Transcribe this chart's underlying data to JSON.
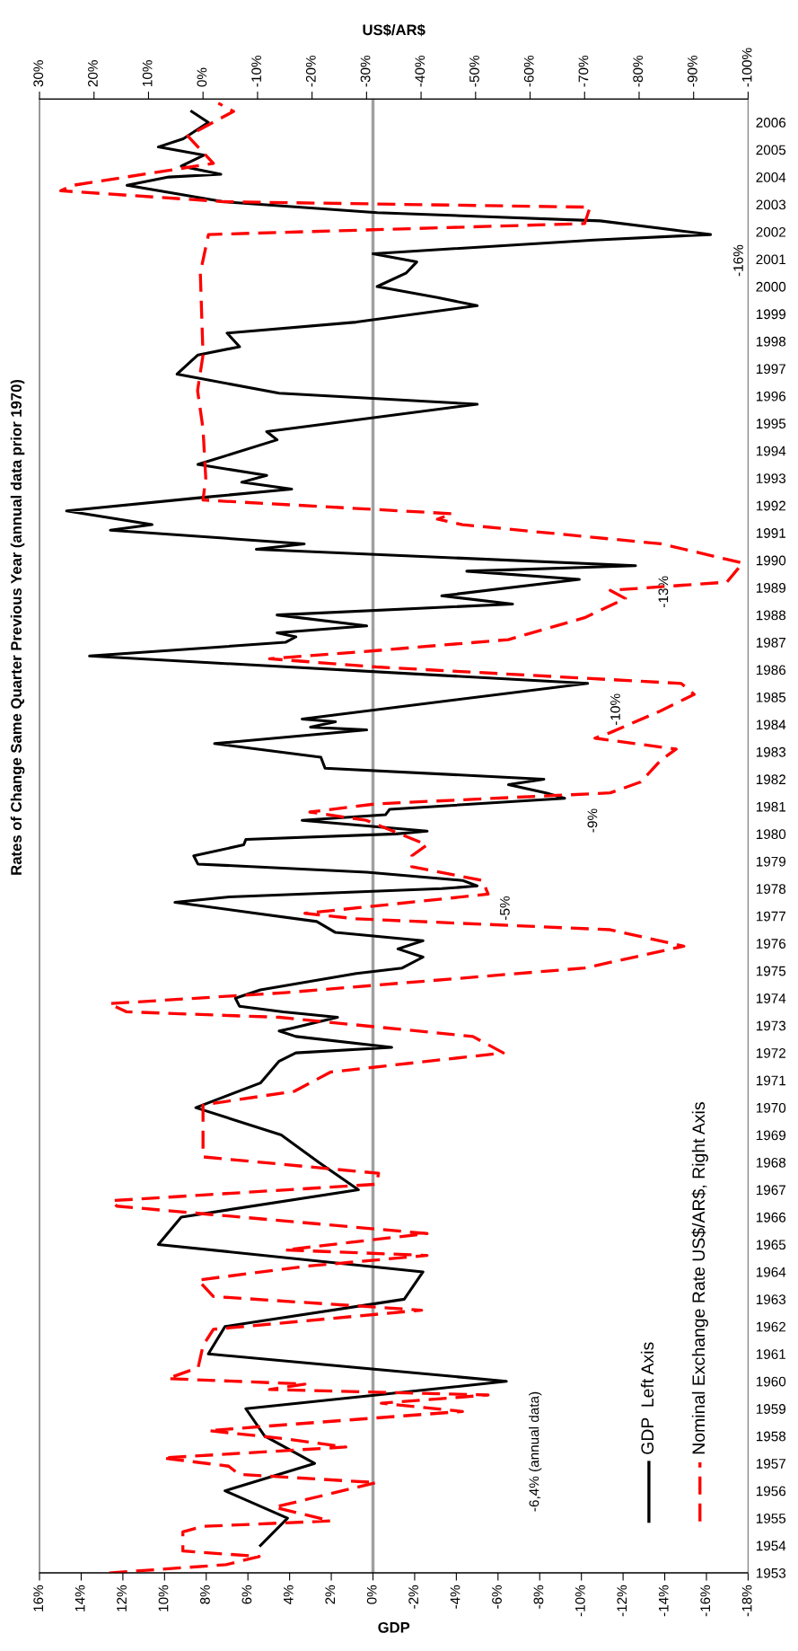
{
  "chart_data": {
    "type": "line",
    "subtitle": "Rates of Change Same Quarter Previous Year (annual data prior 1970)",
    "xlabel": "GDP",
    "x2label": "US$/AR$",
    "ylim": [
      1953,
      2006.85
    ],
    "yticks": [
      1953,
      1954,
      1955,
      1956,
      1957,
      1958,
      1959,
      1960,
      1961,
      1962,
      1963,
      1964,
      1965,
      1966,
      1967,
      1968,
      1969,
      1970,
      1971,
      1972,
      1973,
      1974,
      1975,
      1976,
      1977,
      1978,
      1979,
      1980,
      1981,
      1982,
      1983,
      1984,
      1985,
      1986,
      1987,
      1988,
      1989,
      1990,
      1991,
      1992,
      1993,
      1994,
      1995,
      1996,
      1997,
      1998,
      1999,
      2000,
      2001,
      2002,
      2003,
      2004,
      2005,
      2006
    ],
    "xlim": [
      16,
      -18
    ],
    "xticks": [
      {
        "value": 16,
        "label": "16%"
      },
      {
        "value": 14,
        "label": "14%"
      },
      {
        "value": 12,
        "label": "12%"
      },
      {
        "value": 10,
        "label": "10%"
      },
      {
        "value": 8,
        "label": "8%"
      },
      {
        "value": 6,
        "label": "6%"
      },
      {
        "value": 4,
        "label": "4%"
      },
      {
        "value": 2,
        "label": "2%"
      },
      {
        "value": 0,
        "label": "0%"
      },
      {
        "value": -2,
        "label": "-2%"
      },
      {
        "value": -4,
        "label": "-4%"
      },
      {
        "value": -6,
        "label": "-6%"
      },
      {
        "value": -8,
        "label": "-8%"
      },
      {
        "value": -10,
        "label": "-10%"
      },
      {
        "value": -12,
        "label": "-12%"
      },
      {
        "value": -14,
        "label": "-14%"
      },
      {
        "value": -16,
        "label": "-16%"
      },
      {
        "value": -18,
        "label": "-18%"
      }
    ],
    "x2lim": [
      30,
      -100
    ],
    "x2ticks": [
      {
        "value": 30,
        "label": "30%"
      },
      {
        "value": 20,
        "label": "20%"
      },
      {
        "value": 10,
        "label": "10%"
      },
      {
        "value": 0,
        "label": "0%"
      },
      {
        "value": -10,
        "label": "-10%"
      },
      {
        "value": -20,
        "label": "-20%"
      },
      {
        "value": -30,
        "label": "-30%"
      },
      {
        "value": -40,
        "label": "-40%"
      },
      {
        "value": -50,
        "label": "-50%"
      },
      {
        "value": -60,
        "label": "-60%"
      },
      {
        "value": -70,
        "label": "-70%"
      },
      {
        "value": -80,
        "label": "-80%"
      },
      {
        "value": -90,
        "label": "-90%"
      },
      {
        "value": -100,
        "label": "-100%"
      }
    ],
    "series": [
      {
        "name": "GDP  Left Axis",
        "color": "#000000",
        "line_style": "solid",
        "values": [
          1954,
          1955,
          1956,
          1957,
          1958,
          1959,
          1960,
          1961,
          1962,
          1963,
          1964,
          1965,
          1966,
          1967,
          1968,
          1969,
          1970,
          1970.9,
          1971.7,
          1972.0,
          1972.2,
          1972.6,
          1972.8,
          1972.9,
          1973.3,
          1973.5,
          1973.7,
          1974.0,
          1974.3,
          1974.9,
          1975.1,
          1975.5,
          1975.8,
          1976.1,
          1976.4,
          1976.8,
          1977.5,
          1977.7,
          1978.0,
          1978.1,
          1978.3,
          1978.6,
          1978.9,
          1979.2,
          1979.6,
          1979.8,
          1980.0,
          1980.1,
          1980.5,
          1980.7,
          1980.9,
          1981.3,
          1981.5,
          1981.8,
          1982.0,
          1982.4,
          1982.8,
          1983.3,
          1983.8,
          1983.9,
          1984.1,
          1984.2,
          1985.5,
          1986.5,
          1987.0,
          1987.2,
          1987.35,
          1987.6,
          1988.0,
          1988.4,
          1988.7,
          1989.3,
          1989.6,
          1989.8,
          1990.4,
          1990.6,
          1991.1,
          1991.3,
          1991.8,
          1992.3,
          1992.6,
          1992.85,
          1993.1,
          1993.5,
          1994.4,
          1994.7,
          1995.7,
          1996.1,
          1996.8,
          1997.5,
          1997.8,
          1998.3,
          1998.7,
          1999.3,
          1999.6,
          2000.0,
          2000.5,
          2000.9,
          2001.2,
          2001.7,
          2001.9,
          2002.4,
          2002.7,
          2003.1,
          2003.7,
          2004.0,
          2004.1,
          2004.4,
          2004.8,
          2005.1,
          2005.4,
          2006.0,
          2006.4
        ],
        "x": [
          5.4,
          4.1,
          7.1,
          2.8,
          5.2,
          6.1,
          -6.4,
          7.9,
          7.1,
          -1.5,
          -2.4,
          10.3,
          9.2,
          0.7,
          2.6,
          4.4,
          8.5,
          5.4,
          4.5,
          3.7,
          -0.9,
          3.7,
          4.5,
          3.9,
          1.7,
          4.3,
          6.4,
          6.6,
          5.4,
          0.8,
          -1.4,
          -2.4,
          -1.2,
          -2.4,
          1.8,
          2.7,
          9.5,
          6.9,
          -3.3,
          -5.0,
          -4.3,
          0.3,
          8.4,
          8.6,
          6.2,
          6.1,
          -1.1,
          -2.6,
          3.4,
          -0.6,
          -0.8,
          -9.2,
          -8.3,
          -6.5,
          -8.2,
          2.3,
          2.5,
          7.6,
          0.3,
          3.0,
          1.8,
          3.4,
          -10.3,
          13.6,
          4.2,
          3.7,
          4.6,
          0.3,
          4.6,
          -6.7,
          -3.3,
          -9.9,
          -4.5,
          -12.6,
          5.6,
          3.3,
          12.6,
          10.6,
          14.7,
          8.1,
          3.9,
          6.3,
          5.1,
          8.4,
          4.6,
          5.1,
          -5.0,
          4.5,
          9.4,
          8.4,
          6.4,
          7.0,
          0.8,
          -5.0,
          -3.1,
          -0.2,
          -1.6,
          -2.1,
          0.0,
          -10.6,
          -16.2,
          -10.9,
          -0.2,
          7.2,
          11.8,
          9.8,
          7.3,
          9.2,
          8.1,
          10.3,
          9.1,
          7.9,
          8.7
        ]
      },
      {
        "name": "Nominal Exchange Rate US$/AR$, Right Axis",
        "color": "#ff0000",
        "line_style": "dashed",
        "axis": "x2",
        "values": [
          1953.0,
          1953.3,
          1953.6,
          1953.8,
          1954.5,
          1954.7,
          1954.9,
          1955.4,
          1956.3,
          1956.6,
          1956.9,
          1957.2,
          1957.6,
          1957.9,
          1958.2,
          1958.9,
          1959.2,
          1959.5,
          1959.7,
          1959.9,
          1960.1,
          1960.5,
          1961.3,
          1961.9,
          1962.6,
          1963.1,
          1963.7,
          1964.2,
          1964.6,
          1964.8,
          1965.4,
          1966.4,
          1966.6,
          1967.2,
          1967.6,
          1968.2,
          1969.1,
          1970.1,
          1970.6,
          1971.3,
          1972.0,
          1972.6,
          1973.3,
          1973.5,
          1973.8,
          1974.2,
          1975.1,
          1975.9,
          1976.5,
          1976.9,
          1977.1,
          1977.8,
          1978.3,
          1978.8,
          1979.2,
          1979.6,
          1980.5,
          1980.8,
          1981.1,
          1981.5,
          1981.9,
          1982.7,
          1983.1,
          1983.5,
          1983.7,
          1984.5,
          1985.1,
          1985.5,
          1986.1,
          1986.4,
          1986.7,
          1987.1,
          1987.9,
          1988.6,
          1988.9,
          1989.2,
          1989.9,
          1990.6,
          1991.3,
          1991.5,
          1991.7,
          1992.2,
          1993.0,
          1994.8,
          1996.2,
          1997.5,
          2000.5,
          2001.9,
          2002.3,
          2002.9,
          2003.1,
          2003.5,
          2003.7,
          2004.5,
          2005.5,
          2006.4,
          2006.7
        ],
        "x": [
          17.2,
          -4.2,
          -10.3,
          3.7,
          3.7,
          0.0,
          -23.4,
          -13.1,
          -31.8,
          -6.6,
          -4.7,
          7.4,
          -26.2,
          -15.0,
          -1.0,
          -47.6,
          -32.7,
          -52.3,
          -12.2,
          -18.7,
          6.5,
          0.9,
          0.0,
          -1.9,
          -40.1,
          -1.9,
          0.9,
          -18.7,
          -41.1,
          -15.0,
          -41.1,
          15.8,
          16.8,
          -31.8,
          -32.2,
          0.0,
          0.0,
          0.0,
          -16.8,
          -23.4,
          -55.1,
          -49.5,
          -14.0,
          14.0,
          17.2,
          -15.0,
          -70.0,
          -88.2,
          -74.7,
          -28.0,
          -18.7,
          -52.3,
          -51.3,
          -38.3,
          -38.3,
          -41.1,
          -29.9,
          -19.6,
          -31.8,
          -74.7,
          -80.3,
          -84.0,
          -86.8,
          -71.9,
          -74.7,
          -84.0,
          -90.1,
          -87.7,
          -31.8,
          -12.2,
          -31.8,
          -56.0,
          -70.0,
          -77.5,
          -74.7,
          -96.1,
          -99.0,
          -84.0,
          -47.6,
          -43.0,
          -45.7,
          0.0,
          -0.5,
          0.0,
          1.0,
          0.0,
          0.5,
          -1.0,
          -70.0,
          -71.0,
          -3.8,
          26.1,
          23.8,
          -1.9,
          2.8,
          -5.6,
          -2.8
        ]
      }
    ],
    "ref_lines": [
      {
        "axis": "x",
        "value": 0,
        "color": "#a0a0a0"
      }
    ],
    "annotations": [
      {
        "text": "-6,4% (annual data)",
        "x": -6.4,
        "y": 1960
      },
      {
        "text": "-5%",
        "x": -5.0,
        "y": 1978.1
      },
      {
        "text": "-9%",
        "x": -9.2,
        "y": 1981.3
      },
      {
        "text": "-10%",
        "x": -10.3,
        "y": 1985.5
      },
      {
        "text": "-13%",
        "x": -12.6,
        "y": 1989.8
      },
      {
        "text": "-16%",
        "x": -16.2,
        "y": 2001.9
      }
    ],
    "legend": "bottom right",
    "grid": false
  }
}
